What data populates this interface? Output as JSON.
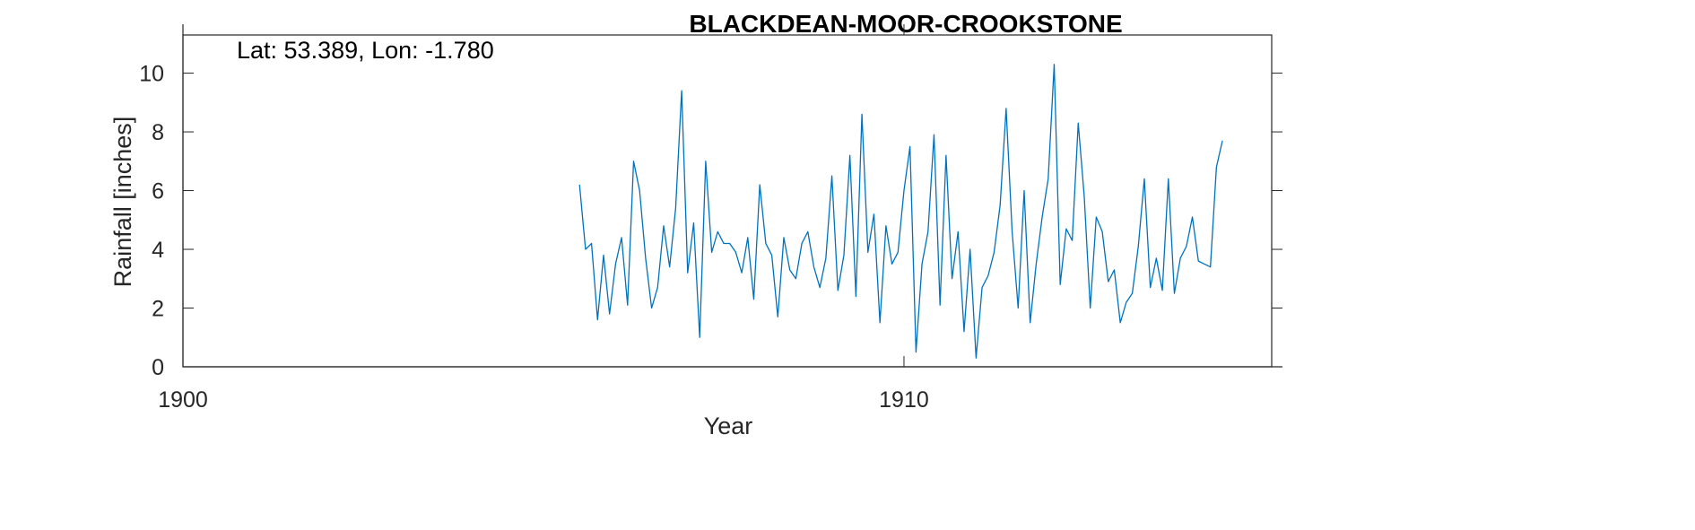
{
  "chart_data": {
    "type": "line",
    "title": "BLACKDEAN-MOOR-CROOKSTONE",
    "xlabel": "Year",
    "ylabel": "Rainfall [inches]",
    "annotation": "Lat: 53.389, Lon: -1.780",
    "xlim": [
      1900,
      1915.1
    ],
    "ylim": [
      0,
      11.3
    ],
    "xticks": [
      1900,
      1910
    ],
    "xtick_labels": [
      "1900",
      "1910"
    ],
    "yticks": [
      0,
      2,
      4,
      6,
      8,
      10
    ],
    "ytick_labels": [
      "0",
      "2",
      "4",
      "6",
      "8",
      "10"
    ],
    "grid": false,
    "line_color": "#0072BD",
    "series": [
      {
        "x_start": 1905.5,
        "x_step": 0.0833333,
        "values": [
          6.2,
          4.0,
          4.2,
          1.6,
          3.8,
          1.8,
          3.5,
          4.4,
          2.1,
          7.0,
          6.0,
          3.7,
          2.0,
          2.7,
          4.8,
          3.4,
          5.4,
          9.4,
          3.2,
          4.9,
          1.0,
          7.0,
          3.9,
          4.6,
          4.2,
          4.2,
          3.9,
          3.2,
          4.4,
          2.3,
          6.2,
          4.2,
          3.8,
          1.7,
          4.4,
          3.3,
          3.0,
          4.2,
          4.6,
          3.4,
          2.7,
          3.7,
          6.5,
          2.6,
          3.8,
          7.2,
          2.4,
          8.6,
          3.9,
          5.2,
          1.5,
          4.8,
          3.5,
          3.9,
          6.0,
          7.5,
          0.5,
          3.5,
          4.6,
          7.9,
          2.1,
          7.2,
          3.0,
          4.6,
          1.2,
          4.0,
          0.3,
          2.7,
          3.1,
          3.9,
          5.5,
          8.8,
          4.6,
          2.0,
          6.0,
          1.5,
          3.5,
          5.1,
          6.4,
          10.3,
          2.8,
          4.7,
          4.3,
          8.3,
          5.8,
          2.0,
          5.1,
          4.6,
          2.9,
          3.3,
          1.5,
          2.2,
          2.5,
          4.1,
          6.4,
          2.7,
          3.7,
          2.6,
          6.4,
          2.5,
          3.7,
          4.1,
          5.1,
          3.6,
          3.5,
          3.4,
          6.8,
          7.7
        ]
      }
    ]
  }
}
